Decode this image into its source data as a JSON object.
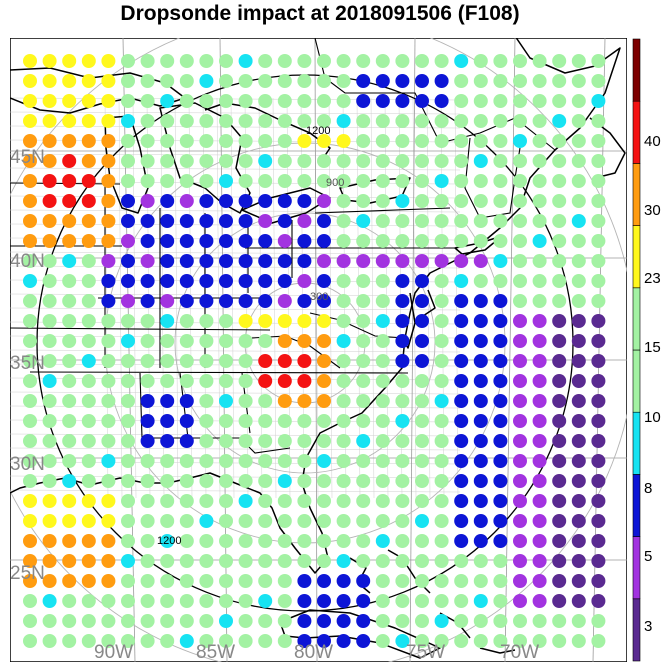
{
  "title": "Dropsonde impact at 2018091506 (F108)",
  "lat_labels": [
    "45N",
    "40N",
    "35N",
    "30N",
    "25N"
  ],
  "lon_labels": [
    "90W",
    "85W",
    "80W",
    "75W",
    "70W"
  ],
  "range_labels": [
    "300",
    "900",
    "1200"
  ],
  "colorbar": {
    "colors": [
      "#5a2a91",
      "#a233e0",
      "#0d15d6",
      "#17e3f2",
      "#a3f2a3",
      "#a3f2a3",
      "#fff81d",
      "#ff9c10",
      "#f41212",
      "#7d0000"
    ],
    "tick_labels": [
      "3",
      "5",
      "8",
      "10",
      "15",
      "23",
      "30",
      "40"
    ]
  },
  "colors": {
    "land": "#ffffff",
    "coast": "#000000",
    "grid": "#999999",
    "county": "#bdbdbd"
  }
}
